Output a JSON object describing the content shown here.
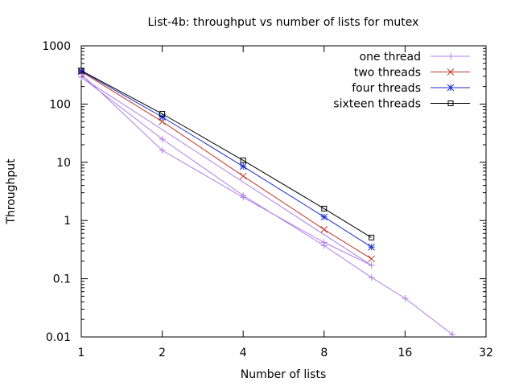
{
  "chart_data": {
    "type": "line",
    "title": "List-4b: throughput vs number of lists for mutex",
    "xlabel": "Number of lists",
    "ylabel": "Throughput",
    "xscale": "log2",
    "yscale": "log10",
    "xlim": [
      1,
      32
    ],
    "ylim": [
      0.01,
      1000
    ],
    "xticks": [
      1,
      2,
      4,
      8,
      16,
      32
    ],
    "xtick_labels": [
      "1",
      "2",
      "4",
      "8",
      "16",
      "32"
    ],
    "yticks": [
      0.01,
      0.1,
      1,
      10,
      100,
      1000
    ],
    "ytick_labels": [
      "0.01",
      "0.1",
      "1",
      "10",
      "100",
      "1000"
    ],
    "grid": false,
    "legend_position": "top-right",
    "series": [
      {
        "name": "one thread",
        "color": "#b07ee8",
        "marker": "plus",
        "x": [
          1,
          2,
          4,
          8,
          12,
          1,
          2,
          4,
          8,
          12,
          16,
          24
        ],
        "y": [
          330,
          16,
          2.5,
          0.42,
          0.17,
          290,
          25,
          2.7,
          0.37,
          0.105,
          0.046,
          0.011
        ]
      },
      {
        "name": "two threads",
        "color": "#c0392b",
        "marker": "cross",
        "x": [
          1,
          2,
          4,
          8,
          12
        ],
        "y": [
          360,
          50,
          5.8,
          0.7,
          0.22
        ]
      },
      {
        "name": "four threads",
        "color": "#1b2fcc",
        "marker": "star",
        "x": [
          1,
          2,
          4,
          8,
          12
        ],
        "y": [
          370,
          60,
          8.5,
          1.15,
          0.35
        ]
      },
      {
        "name": "sixteen threads",
        "color": "#000000",
        "marker": "square",
        "x": [
          1,
          2,
          4,
          8,
          12
        ],
        "y": [
          375,
          68,
          10.8,
          1.6,
          0.51
        ]
      }
    ]
  }
}
